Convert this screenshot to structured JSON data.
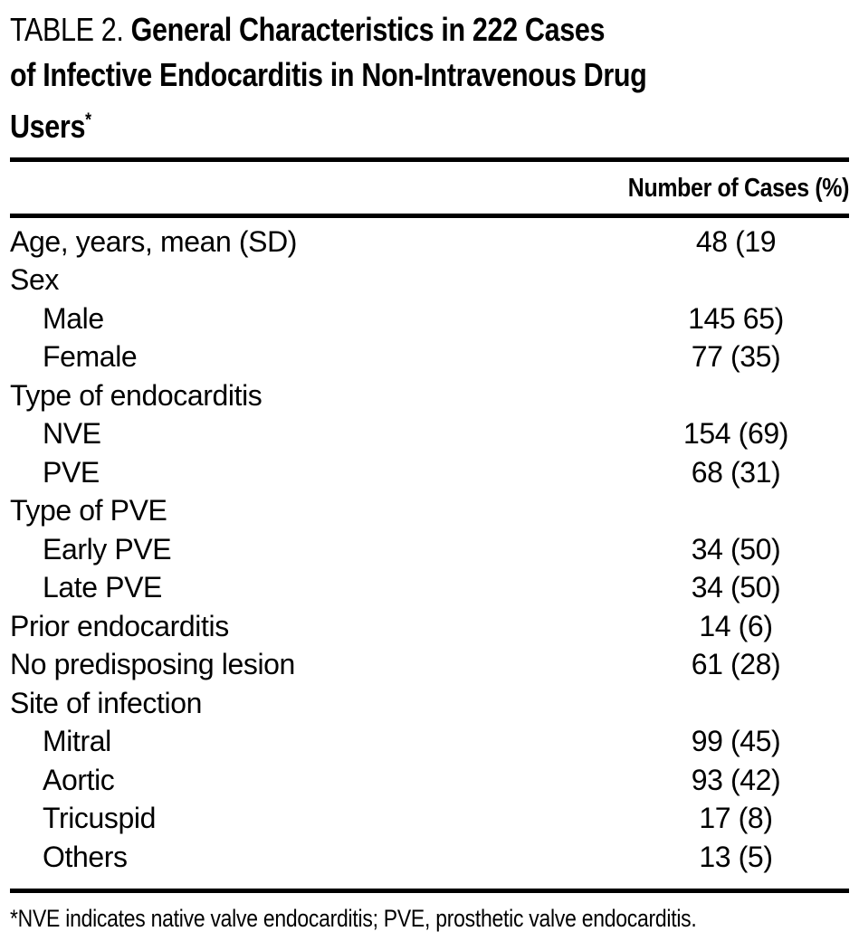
{
  "title": {
    "prefix": "TABLE 2.",
    "line1": "General Characteristics in 222 Cases",
    "line2": "of Infective Endocarditis in Non-Intravenous Drug",
    "line3": "Users",
    "footnote_marker": "*"
  },
  "table": {
    "value_header": "Number of Cases (%)",
    "rows": [
      {
        "label": "Age, years, mean (SD)",
        "value": "48 (19",
        "indent": false
      },
      {
        "label": "Sex",
        "value": "",
        "indent": false
      },
      {
        "label": "Male",
        "value": "145 65)",
        "indent": true
      },
      {
        "label": "Female",
        "value": "77 (35)",
        "indent": true
      },
      {
        "label": "Type of endocarditis",
        "value": "",
        "indent": false
      },
      {
        "label": "NVE",
        "value": "154 (69)",
        "indent": true
      },
      {
        "label": "PVE",
        "value": "68 (31)",
        "indent": true
      },
      {
        "label": "Type of PVE",
        "value": "",
        "indent": false
      },
      {
        "label": "Early PVE",
        "value": "34 (50)",
        "indent": true
      },
      {
        "label": "Late PVE",
        "value": "34 (50)",
        "indent": true
      },
      {
        "label": "Prior endocarditis",
        "value": "14 (6)",
        "indent": false
      },
      {
        "label": "No predisposing lesion",
        "value": "61 (28)",
        "indent": false
      },
      {
        "label": "Site of infection",
        "value": "",
        "indent": false
      },
      {
        "label": "Mitral",
        "value": "99 (45)",
        "indent": true
      },
      {
        "label": "Aortic",
        "value": "93 (42)",
        "indent": true
      },
      {
        "label": "Tricuspid",
        "value": "17 (8)",
        "indent": true
      },
      {
        "label": "Others",
        "value": "13 (5)",
        "indent": true
      }
    ]
  },
  "footnote": {
    "text": "*NVE indicates native valve endocarditis; PVE, prosthetic valve endocarditis."
  },
  "colors": {
    "text": "#000000",
    "background": "#ffffff",
    "rule": "#000000"
  }
}
